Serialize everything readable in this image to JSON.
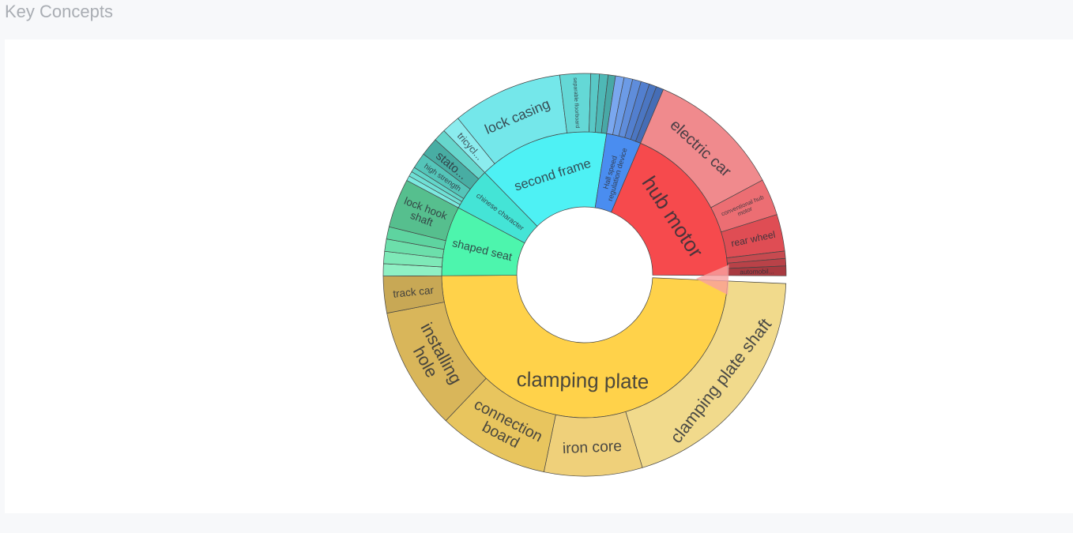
{
  "page": {
    "title": "Key Concepts"
  },
  "chart_data": {
    "type": "sunburst",
    "title": "",
    "center": "",
    "children": [
      {
        "name": "clamping plate",
        "value": 50,
        "color": "#ffd24a",
        "children": [
          {
            "name": "clamping plate shaft",
            "value": 20,
            "color": "#f1da8c"
          },
          {
            "name": "iron core",
            "value": 8,
            "color": "#efd07a"
          },
          {
            "name": "connection board",
            "value": 9,
            "color": "#e8c55e"
          },
          {
            "name": "installing hole",
            "value": 10,
            "color": "#d9b65a"
          },
          {
            "name": "track car",
            "value": 3,
            "color": "#c8a855"
          }
        ]
      },
      {
        "name": "shaped seat",
        "value": 8,
        "color": "#4df5ad",
        "children": [
          {
            "name": "",
            "value": 1,
            "color": "#8ff0c4"
          },
          {
            "name": "",
            "value": 1,
            "color": "#7ee9b8"
          },
          {
            "name": "",
            "value": 1,
            "color": "#6cdfab"
          },
          {
            "name": "",
            "value": 1,
            "color": "#5ed4a0"
          },
          {
            "name": "lock hook shaft",
            "value": 4,
            "color": "#56bf8e"
          }
        ]
      },
      {
        "name": "chinese character",
        "value": 5,
        "color": "#44e4d6",
        "children": [
          {
            "name": "",
            "value": 0.4,
            "color": "#7be9df"
          },
          {
            "name": "",
            "value": 0.4,
            "color": "#6fe0d5"
          },
          {
            "name": "",
            "value": 0.4,
            "color": "#62d6ca"
          },
          {
            "name": "high strength",
            "value": 1.3,
            "color": "#54c5b9"
          },
          {
            "name": "stato...",
            "value": 1.5,
            "color": "#48ada3"
          },
          {
            "name": "",
            "value": 1,
            "color": "#66d6cc"
          }
        ]
      },
      {
        "name": "second frame",
        "value": 15,
        "color": "#4ef1f4",
        "children": [
          {
            "name": "tricycl...",
            "value": 1.5,
            "color": "#8becee"
          },
          {
            "name": "lock casing",
            "value": 9,
            "color": "#74e7ea"
          },
          {
            "name": "separable floorboard",
            "value": 2.5,
            "color": "#64d8d6"
          },
          {
            "name": "",
            "value": 0.7,
            "color": "#58c8c6"
          },
          {
            "name": "",
            "value": 0.7,
            "color": "#4eb8b6"
          },
          {
            "name": "",
            "value": 0.6,
            "color": "#48a8a6"
          }
        ]
      },
      {
        "name": "Hall speed regulation device",
        "value": 4,
        "color": "#4a8df0",
        "children": [
          {
            "name": "",
            "value": 0.7,
            "color": "#7aa7ef"
          },
          {
            "name": "",
            "value": 0.7,
            "color": "#6c9be6"
          },
          {
            "name": "",
            "value": 0.7,
            "color": "#5f8ddb"
          },
          {
            "name": "",
            "value": 0.7,
            "color": "#527fcf"
          },
          {
            "name": "",
            "value": 0.6,
            "color": "#4b76c2"
          },
          {
            "name": "",
            "value": 0.6,
            "color": "#456db6"
          }
        ]
      },
      {
        "name": "hub motor",
        "value": 19,
        "color": "#f64a4d",
        "children": [
          {
            "name": "electric car",
            "value": 11,
            "color": "#f08a8d"
          },
          {
            "name": "conventional hub motor",
            "value": 3,
            "color": "#ec6e73"
          },
          {
            "name": "rear wheel",
            "value": 3,
            "color": "#df4d54"
          },
          {
            "name": "",
            "value": 0.6,
            "color": "#c74a50"
          },
          {
            "name": "",
            "value": 0.6,
            "color": "#b94248"
          },
          {
            "name": "automobil...",
            "value": 0.8,
            "color": "#a83a40"
          }
        ]
      }
    ]
  }
}
